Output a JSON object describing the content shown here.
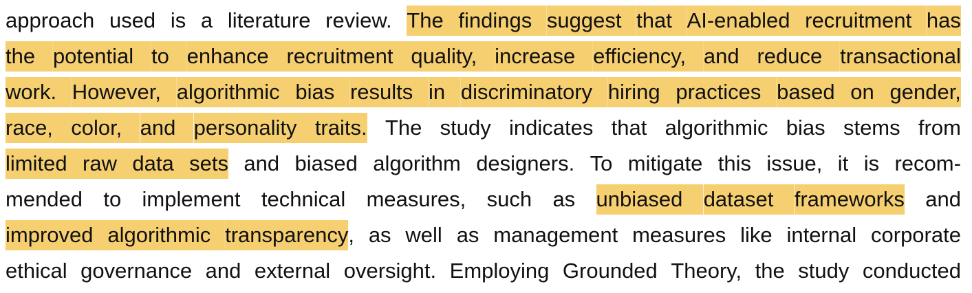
{
  "document": {
    "lines": [
      [
        {
          "t": "approach",
          "h": false
        },
        {
          "t": "used",
          "h": false
        },
        {
          "t": "is",
          "h": false
        },
        {
          "t": "a",
          "h": false
        },
        {
          "t": "literature",
          "h": false
        },
        {
          "t": "review.",
          "h": false
        },
        {
          "t": "The",
          "h": true
        },
        {
          "t": "findings",
          "h": true
        },
        {
          "t": "suggest",
          "h": true
        },
        {
          "t": "that",
          "h": true
        },
        {
          "t": "AI-enabled",
          "h": true
        },
        {
          "t": "recruitment",
          "h": true
        },
        {
          "t": "has",
          "h": true
        }
      ],
      [
        {
          "t": "the",
          "h": true
        },
        {
          "t": "potential",
          "h": true
        },
        {
          "t": "to",
          "h": true
        },
        {
          "t": "enhance",
          "h": true
        },
        {
          "t": "recruitment",
          "h": true
        },
        {
          "t": "quality,",
          "h": true
        },
        {
          "t": "increase",
          "h": true
        },
        {
          "t": "efficiency,",
          "h": true
        },
        {
          "t": "and",
          "h": true
        },
        {
          "t": "reduce",
          "h": true
        },
        {
          "t": "transactional",
          "h": true
        }
      ],
      [
        {
          "t": "work.",
          "h": true
        },
        {
          "t": "However,",
          "h": true
        },
        {
          "t": "algorithmic",
          "h": true
        },
        {
          "t": "bias",
          "h": true
        },
        {
          "t": "results",
          "h": true
        },
        {
          "t": "in",
          "h": true
        },
        {
          "t": "discriminatory",
          "h": true
        },
        {
          "t": "hiring",
          "h": true
        },
        {
          "t": "practices",
          "h": true
        },
        {
          "t": "based",
          "h": true
        },
        {
          "t": "on",
          "h": true
        },
        {
          "t": "gender,",
          "h": true
        }
      ],
      [
        {
          "t": "race,",
          "h": true
        },
        {
          "t": "color,",
          "h": true
        },
        {
          "t": "and",
          "h": true
        },
        {
          "t": "personality",
          "h": true
        },
        {
          "t": "traits.",
          "h": true
        },
        {
          "t": "The",
          "h": false
        },
        {
          "t": "study",
          "h": false
        },
        {
          "t": "indicates",
          "h": false
        },
        {
          "t": "that",
          "h": false
        },
        {
          "t": "algorithmic",
          "h": false
        },
        {
          "t": "bias",
          "h": false
        },
        {
          "t": "stems",
          "h": false
        },
        {
          "t": "from",
          "h": false
        }
      ],
      [
        {
          "t": "limited",
          "h": true
        },
        {
          "t": "raw",
          "h": true
        },
        {
          "t": "data",
          "h": true
        },
        {
          "t": "sets",
          "h": true
        },
        {
          "t": "and",
          "h": false
        },
        {
          "t": "biased",
          "h": false
        },
        {
          "t": "algorithm",
          "h": false
        },
        {
          "t": "designers.",
          "h": false
        },
        {
          "t": "To",
          "h": false
        },
        {
          "t": "mitigate",
          "h": false
        },
        {
          "t": "this",
          "h": false
        },
        {
          "t": "issue,",
          "h": false
        },
        {
          "t": "it",
          "h": false
        },
        {
          "t": "is",
          "h": false
        },
        {
          "t": "recom-",
          "h": false
        }
      ],
      [
        {
          "t": "mended",
          "h": false
        },
        {
          "t": "to",
          "h": false
        },
        {
          "t": "implement",
          "h": false
        },
        {
          "t": "technical",
          "h": false
        },
        {
          "t": "measures,",
          "h": false
        },
        {
          "t": "such",
          "h": false
        },
        {
          "t": "as",
          "h": false
        },
        {
          "t": "unbiased",
          "h": true
        },
        {
          "t": "dataset",
          "h": true
        },
        {
          "t": "frameworks",
          "h": true
        },
        {
          "t": "and",
          "h": false
        }
      ],
      [
        {
          "t": "improved",
          "h": true
        },
        {
          "t": "algorithmic",
          "h": true
        },
        {
          "t": "transparency",
          "h": true
        },
        {
          "t": ",",
          "h": false,
          "attach": true
        },
        {
          "t": "as",
          "h": false
        },
        {
          "t": "well",
          "h": false
        },
        {
          "t": "as",
          "h": false
        },
        {
          "t": "management",
          "h": false
        },
        {
          "t": "measures",
          "h": false
        },
        {
          "t": "like",
          "h": false
        },
        {
          "t": "internal",
          "h": false
        },
        {
          "t": "corporate",
          "h": false
        }
      ],
      [
        {
          "t": "ethical",
          "h": false
        },
        {
          "t": "governance",
          "h": false
        },
        {
          "t": "and",
          "h": false
        },
        {
          "t": "external",
          "h": false
        },
        {
          "t": "oversight.",
          "h": false
        },
        {
          "t": "Employing",
          "h": false
        },
        {
          "t": "Grounded",
          "h": false
        },
        {
          "t": "Theory,",
          "h": false
        },
        {
          "t": "the",
          "h": false
        },
        {
          "t": "study",
          "h": false
        },
        {
          "t": "conducted",
          "h": false
        }
      ]
    ],
    "highlight_color": "#f6cf71",
    "text_color": "#111111"
  }
}
